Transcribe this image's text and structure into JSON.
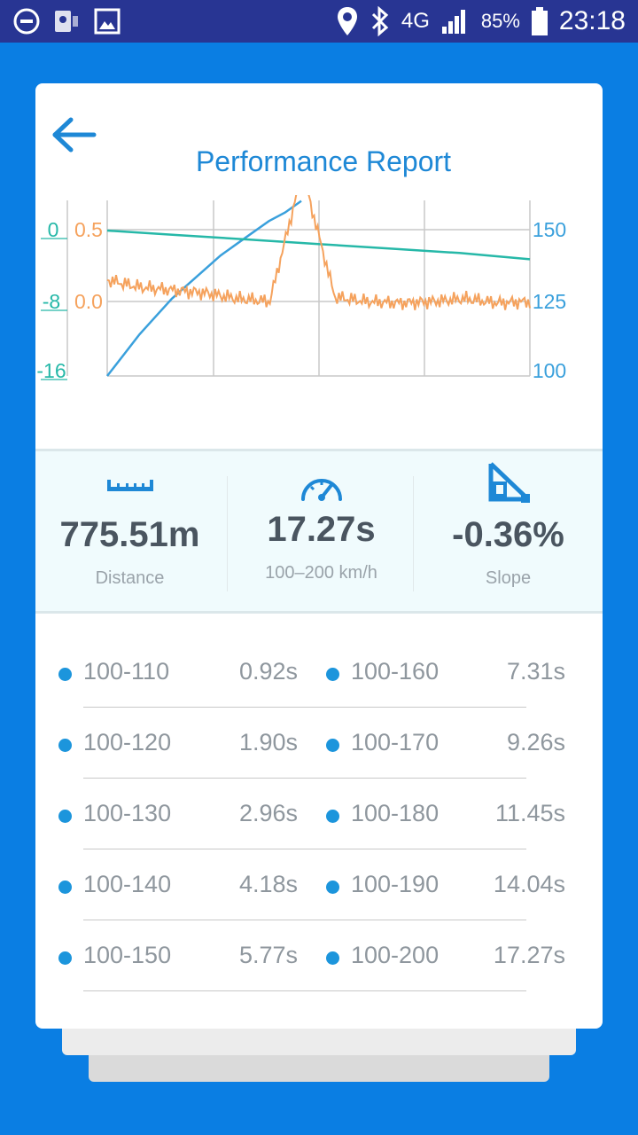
{
  "status_bar": {
    "network": "4G",
    "battery": "85%",
    "time": "23:18"
  },
  "screen": {
    "title": "Performance Report"
  },
  "chart_data": {
    "type": "line",
    "y_left_outer": {
      "ticks": [
        "0",
        "-8",
        "-16"
      ],
      "color": "#26b8a8"
    },
    "y_left_inner": {
      "ticks": [
        "0.5",
        "0.0"
      ],
      "color": "#f5a25d"
    },
    "y_right": {
      "ticks": [
        "150",
        "125",
        "100"
      ],
      "color": "#3aa0dc"
    },
    "series": [
      {
        "color": "#3aa0dc",
        "values": [
          100,
          107,
          114,
          120,
          126,
          131,
          136,
          141,
          145,
          149,
          153,
          156,
          160
        ]
      },
      {
        "color": "#26b8a8",
        "values": [
          -0.1,
          -0.6,
          -1.1,
          -1.6,
          -2.1,
          -2.6,
          -3.3
        ]
      },
      {
        "color": "#f5a25d",
        "values": [
          0.15,
          0.1,
          0.08,
          0.06,
          0.02,
          0.0,
          0.9,
          0.03,
          0.0,
          -0.01,
          0.0,
          0.02,
          -0.01,
          0.0
        ]
      }
    ]
  },
  "stats": [
    {
      "icon": "ruler-icon",
      "value": "775.51m",
      "label": "Distance"
    },
    {
      "icon": "speedometer-icon",
      "value": "17.27s",
      "label": "100–200 km/h"
    },
    {
      "icon": "slope-icon",
      "value": "-0.36%",
      "label": "Slope"
    }
  ],
  "splits": [
    {
      "left_range": "100-110",
      "left_time": "0.92s",
      "right_range": "100-160",
      "right_time": "7.31s"
    },
    {
      "left_range": "100-120",
      "left_time": "1.90s",
      "right_range": "100-170",
      "right_time": "9.26s"
    },
    {
      "left_range": "100-130",
      "left_time": "2.96s",
      "right_range": "100-180",
      "right_time": "11.45s"
    },
    {
      "left_range": "100-140",
      "left_time": "4.18s",
      "right_range": "100-190",
      "right_time": "14.04s"
    },
    {
      "left_range": "100-150",
      "left_time": "5.77s",
      "right_range": "100-200",
      "right_time": "17.27s"
    }
  ],
  "colors": {
    "accent": "#1e88d6",
    "background": "#0a7ee3",
    "status_bar": "#283593"
  }
}
